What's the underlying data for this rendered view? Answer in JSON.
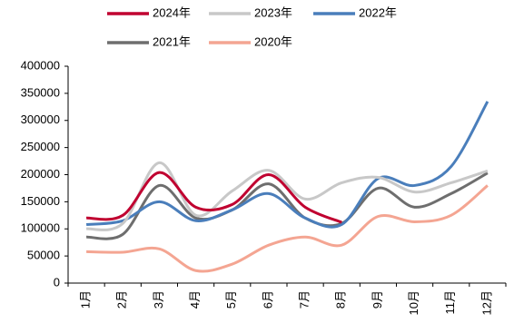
{
  "chart_data": {
    "type": "line",
    "categories": [
      "1月",
      "2月",
      "3月",
      "4月",
      "5月",
      "6月",
      "7月",
      "8月",
      "9月",
      "10月",
      "11月",
      "12月"
    ],
    "series": [
      {
        "name": "2024年",
        "color": "#c00030",
        "values": [
          120000,
          125000,
          204000,
          140000,
          145000,
          200000,
          140000,
          112000,
          null,
          null,
          null,
          null
        ]
      },
      {
        "name": "2023年",
        "color": "#c8c8c8",
        "values": [
          100000,
          110000,
          222000,
          125000,
          170000,
          208000,
          155000,
          185000,
          195000,
          168000,
          185000,
          207000
        ]
      },
      {
        "name": "2022年",
        "color": "#4a7ebb",
        "values": [
          108000,
          115000,
          150000,
          115000,
          135000,
          165000,
          120000,
          108000,
          193000,
          180000,
          215000,
          335000
        ]
      },
      {
        "name": "2021年",
        "color": "#6e6e6e",
        "values": [
          85000,
          90000,
          180000,
          120000,
          135000,
          183000,
          120000,
          110000,
          175000,
          140000,
          165000,
          203000
        ]
      },
      {
        "name": "2020年",
        "color": "#f4a592",
        "values": [
          58000,
          57000,
          63000,
          23000,
          35000,
          70000,
          85000,
          70000,
          123000,
          113000,
          125000,
          180000
        ]
      }
    ],
    "ylim": [
      0,
      400000
    ],
    "yticks": [
      0,
      50000,
      100000,
      150000,
      200000,
      250000,
      300000,
      350000,
      400000
    ]
  }
}
